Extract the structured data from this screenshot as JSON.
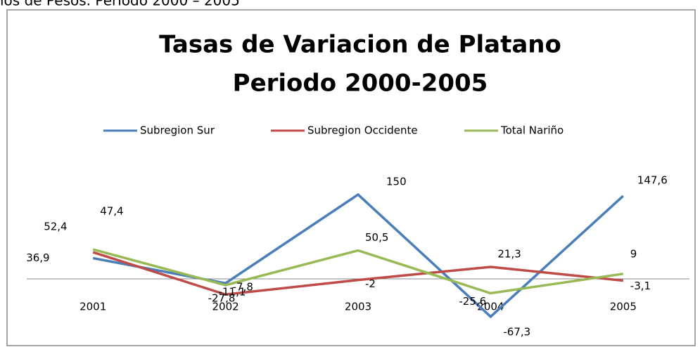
{
  "caption": "los de Pesos.  Periodo 2000 – 2005",
  "chart_data": {
    "type": "line",
    "title": [
      "Tasas de Variacion de Platano",
      "Periodo 2000-2005"
    ],
    "categories": [
      "2001",
      "2002",
      "2003",
      "2004",
      "2005"
    ],
    "series": [
      {
        "name": "Subregion Sur",
        "color": "#4a7ebb",
        "values": [
          36.9,
          -7.8,
          150,
          -67.3,
          147.6
        ],
        "value_labels": [
          "36,9",
          "-7,8",
          "150",
          "-67,3",
          "147,6"
        ]
      },
      {
        "name": "Subregion Occidente",
        "color": "#be4b48",
        "values": [
          47.4,
          -27.8,
          -2,
          21.3,
          -3.1
        ],
        "value_labels": [
          "47,4",
          "-27,8",
          "-2",
          "21,3",
          "-3,1"
        ]
      },
      {
        "name": "Total Nariño",
        "color": "#98b954",
        "values": [
          52.4,
          -11.1,
          50.5,
          -25.6,
          9
        ],
        "value_labels": [
          "52,4",
          "-11,1",
          "50,5",
          "-25,6",
          "9"
        ]
      }
    ],
    "ylim": [
      -100,
      200
    ],
    "legend": "top"
  }
}
